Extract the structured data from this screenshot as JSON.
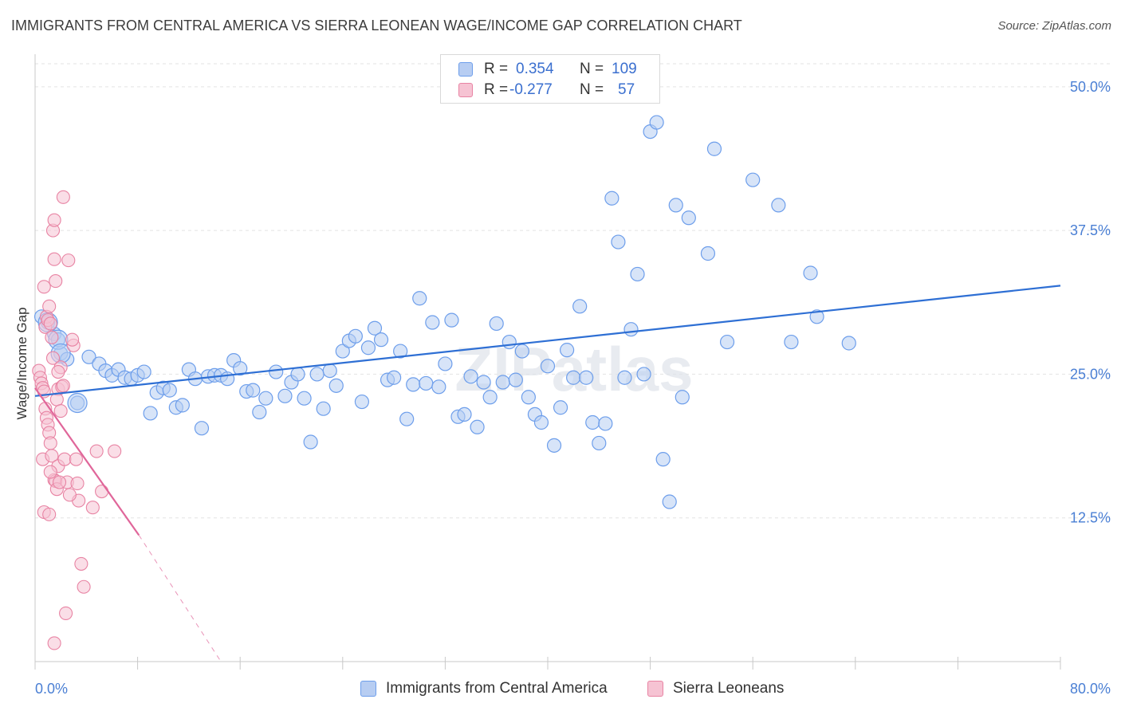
{
  "header": {
    "title": "IMMIGRANTS FROM CENTRAL AMERICA VS SIERRA LEONEAN WAGE/INCOME GAP CORRELATION CHART",
    "source": "Source: ZipAtlas.com"
  },
  "legend_top": {
    "rows": [
      {
        "r_label": "R =",
        "r_value": "0.354",
        "n_label": "N =",
        "n_value": "109"
      },
      {
        "r_label": "R =",
        "r_value": "-0.277",
        "n_label": "N =",
        "n_value": "57"
      }
    ]
  },
  "watermark": "ZIPatlas",
  "chart_data": {
    "type": "scatter",
    "ylabel": "Wage/Income Gap",
    "xlim": [
      0,
      80
    ],
    "ylim": [
      0,
      52
    ],
    "x_tick_labels": [
      "0.0%",
      "80.0%"
    ],
    "y_ticks": [
      12.5,
      25.0,
      37.5,
      50.0
    ],
    "y_tick_labels": [
      "12.5%",
      "25.0%",
      "37.5%",
      "50.0%"
    ],
    "grid": true,
    "legend_position": "bottom",
    "series": [
      {
        "name": "Immigrants from Central America",
        "color": "#6d9eeb",
        "fill": "#b7cdf2",
        "trend": [
          [
            0,
            23.1
          ],
          [
            80,
            32.7
          ]
        ],
        "points": [
          [
            0.5,
            30.0
          ],
          [
            1.0,
            29.5
          ],
          [
            1.5,
            28.5
          ],
          [
            1.8,
            28.0
          ],
          [
            2.0,
            26.8
          ],
          [
            2.5,
            26.3
          ],
          [
            3.3,
            22.5
          ],
          [
            4.2,
            26.5
          ],
          [
            5.0,
            25.9
          ],
          [
            5.5,
            25.3
          ],
          [
            6.0,
            24.9
          ],
          [
            6.5,
            25.4
          ],
          [
            7.0,
            24.7
          ],
          [
            7.5,
            24.6
          ],
          [
            8.0,
            24.9
          ],
          [
            8.5,
            25.2
          ],
          [
            9.0,
            21.6
          ],
          [
            9.5,
            23.4
          ],
          [
            10.0,
            23.8
          ],
          [
            10.5,
            23.6
          ],
          [
            11.0,
            22.1
          ],
          [
            11.5,
            22.3
          ],
          [
            12.0,
            25.4
          ],
          [
            12.5,
            24.6
          ],
          [
            13.0,
            20.3
          ],
          [
            13.5,
            24.8
          ],
          [
            14.0,
            24.9
          ],
          [
            14.5,
            24.9
          ],
          [
            15.0,
            24.6
          ],
          [
            15.5,
            26.2
          ],
          [
            16.0,
            25.5
          ],
          [
            16.5,
            23.5
          ],
          [
            17.0,
            23.6
          ],
          [
            17.5,
            21.7
          ],
          [
            18.0,
            22.9
          ],
          [
            18.8,
            25.2
          ],
          [
            19.5,
            23.1
          ],
          [
            20.0,
            24.3
          ],
          [
            20.5,
            25.0
          ],
          [
            21.0,
            22.9
          ],
          [
            21.5,
            19.1
          ],
          [
            22.0,
            25.0
          ],
          [
            22.5,
            22.0
          ],
          [
            23.0,
            25.3
          ],
          [
            23.5,
            24.0
          ],
          [
            24.0,
            27.0
          ],
          [
            24.5,
            27.9
          ],
          [
            25.0,
            28.3
          ],
          [
            25.5,
            22.6
          ],
          [
            26.0,
            27.3
          ],
          [
            26.5,
            29.0
          ],
          [
            27.0,
            28.0
          ],
          [
            27.5,
            24.5
          ],
          [
            28.0,
            24.7
          ],
          [
            28.5,
            27.0
          ],
          [
            29.0,
            21.1
          ],
          [
            29.5,
            24.1
          ],
          [
            30.0,
            31.6
          ],
          [
            30.5,
            24.2
          ],
          [
            31.0,
            29.5
          ],
          [
            31.5,
            23.9
          ],
          [
            32.0,
            25.9
          ],
          [
            32.5,
            29.7
          ],
          [
            33.0,
            21.3
          ],
          [
            33.5,
            21.5
          ],
          [
            34.0,
            24.8
          ],
          [
            34.5,
            20.4
          ],
          [
            35.0,
            24.3
          ],
          [
            35.5,
            23.0
          ],
          [
            36.0,
            29.4
          ],
          [
            36.5,
            24.3
          ],
          [
            37.0,
            27.8
          ],
          [
            37.5,
            24.5
          ],
          [
            38.0,
            27.0
          ],
          [
            38.5,
            23.0
          ],
          [
            39.0,
            21.5
          ],
          [
            39.5,
            20.8
          ],
          [
            40.0,
            25.7
          ],
          [
            40.5,
            18.8
          ],
          [
            41.0,
            22.1
          ],
          [
            41.5,
            27.1
          ],
          [
            42.0,
            24.7
          ],
          [
            42.5,
            30.9
          ],
          [
            43.0,
            24.7
          ],
          [
            43.5,
            20.8
          ],
          [
            44.0,
            19.0
          ],
          [
            44.5,
            20.7
          ],
          [
            45.0,
            40.3
          ],
          [
            45.5,
            36.5
          ],
          [
            46.0,
            24.7
          ],
          [
            46.5,
            28.9
          ],
          [
            47.0,
            33.7
          ],
          [
            47.5,
            25.0
          ],
          [
            48.0,
            46.1
          ],
          [
            48.5,
            46.9
          ],
          [
            49.0,
            17.6
          ],
          [
            49.5,
            13.9
          ],
          [
            50.0,
            39.7
          ],
          [
            50.5,
            23.0
          ],
          [
            51.0,
            38.6
          ],
          [
            52.5,
            35.5
          ],
          [
            53.0,
            44.6
          ],
          [
            54.0,
            27.8
          ],
          [
            56.0,
            41.9
          ],
          [
            58.0,
            39.7
          ],
          [
            59.0,
            27.8
          ],
          [
            60.5,
            33.8
          ],
          [
            61.0,
            30.0
          ],
          [
            63.5,
            27.7
          ]
        ],
        "large_points": [
          [
            1.0,
            29.5
          ],
          [
            1.8,
            28.0
          ],
          [
            2.0,
            26.8
          ],
          [
            3.3,
            22.5
          ]
        ]
      },
      {
        "name": "Sierra Leoneans",
        "color": "#e883a3",
        "fill": "#f6c3d3",
        "trend": [
          [
            0,
            23.8
          ],
          [
            8.1,
            11.0
          ]
        ],
        "trend_dashed": [
          [
            8.1,
            11.0
          ],
          [
            14.5,
            0.0
          ]
        ],
        "points": [
          [
            0.3,
            25.3
          ],
          [
            0.4,
            24.7
          ],
          [
            0.5,
            24.2
          ],
          [
            0.6,
            23.8
          ],
          [
            0.7,
            23.5
          ],
          [
            0.8,
            22.0
          ],
          [
            0.9,
            21.2
          ],
          [
            1.0,
            20.6
          ],
          [
            1.1,
            19.9
          ],
          [
            1.2,
            19.0
          ],
          [
            0.6,
            17.6
          ],
          [
            0.7,
            13.0
          ],
          [
            1.3,
            17.9
          ],
          [
            1.5,
            15.8
          ],
          [
            1.6,
            15.7
          ],
          [
            1.7,
            15.0
          ],
          [
            1.8,
            17.0
          ],
          [
            0.8,
            29.1
          ],
          [
            0.9,
            30.0
          ],
          [
            1.0,
            29.7
          ],
          [
            1.1,
            30.9
          ],
          [
            1.2,
            29.4
          ],
          [
            1.3,
            28.2
          ],
          [
            1.4,
            26.4
          ],
          [
            0.7,
            32.6
          ],
          [
            1.6,
            33.1
          ],
          [
            1.5,
            35.0
          ],
          [
            1.4,
            37.5
          ],
          [
            1.5,
            38.4
          ],
          [
            2.2,
            40.4
          ],
          [
            2.6,
            34.9
          ],
          [
            1.8,
            23.7
          ],
          [
            2.0,
            25.6
          ],
          [
            2.1,
            23.9
          ],
          [
            1.8,
            25.2
          ],
          [
            2.2,
            24.0
          ],
          [
            1.7,
            22.8
          ],
          [
            2.0,
            21.8
          ],
          [
            2.3,
            17.6
          ],
          [
            2.5,
            15.6
          ],
          [
            3.0,
            27.5
          ],
          [
            3.2,
            17.6
          ],
          [
            3.3,
            15.5
          ],
          [
            3.4,
            14.0
          ],
          [
            3.6,
            8.5
          ],
          [
            3.8,
            6.5
          ],
          [
            4.5,
            13.4
          ],
          [
            4.8,
            18.3
          ],
          [
            5.2,
            14.8
          ],
          [
            6.2,
            18.3
          ],
          [
            2.4,
            4.2
          ],
          [
            1.5,
            1.6
          ],
          [
            2.9,
            28.0
          ],
          [
            2.7,
            14.5
          ],
          [
            1.9,
            15.6
          ],
          [
            1.2,
            16.5
          ],
          [
            1.1,
            12.8
          ]
        ]
      }
    ]
  },
  "legend_bottom": {
    "items": [
      {
        "label": "Immigrants from Central America"
      },
      {
        "label": "Sierra Leoneans"
      }
    ]
  }
}
